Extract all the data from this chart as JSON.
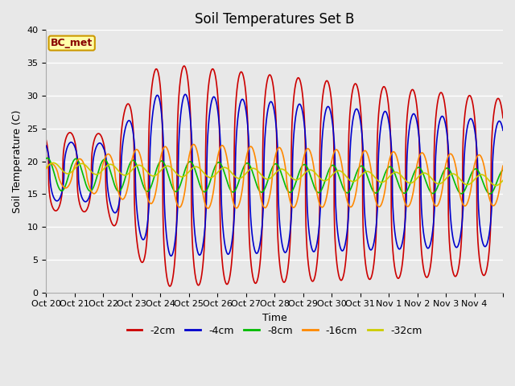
{
  "title": "Soil Temperatures Set B",
  "xlabel": "Time",
  "ylabel": "Soil Temperature (C)",
  "ylim": [
    0,
    40
  ],
  "n_days": 16,
  "label": "BC_met",
  "xtick_labels": [
    "Oct 20",
    "Oct 21",
    "Oct 22",
    "Oct 23",
    "Oct 24",
    "Oct 25",
    "Oct 26",
    "Oct 27",
    "Oct 28",
    "Oct 29",
    "Oct 30",
    "Oct 31",
    "Nov 1",
    "Nov 2",
    "Nov 3",
    "Nov 4"
  ],
  "series": [
    {
      "name": "-2cm",
      "color": "#cc0000",
      "lw": 1.2
    },
    {
      "name": "-4cm",
      "color": "#0000cc",
      "lw": 1.2
    },
    {
      "name": "-8cm",
      "color": "#00bb00",
      "lw": 1.2
    },
    {
      "name": "-16cm",
      "color": "#ff8800",
      "lw": 1.2
    },
    {
      "name": "-32cm",
      "color": "#cccc00",
      "lw": 1.2
    }
  ],
  "fig_bg": "#e8e8e8",
  "ax_bg": "#e8e8e8",
  "grid_color": "#ffffff",
  "title_fontsize": 12
}
